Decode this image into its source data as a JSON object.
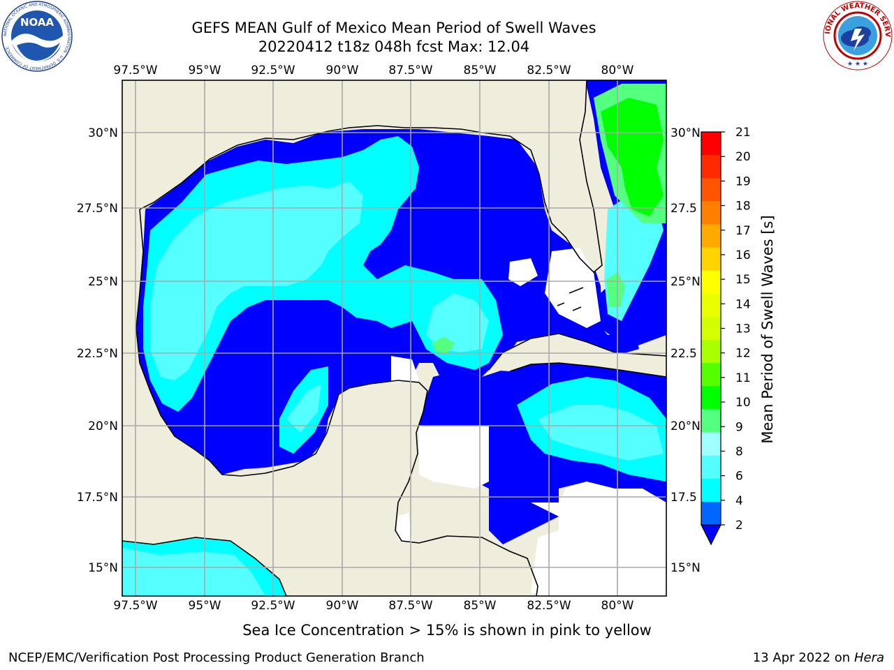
{
  "header": {
    "title_line1": "GEFS MEAN Gulf of Mexico Mean Period of Swell Waves",
    "title_line2": "20220412 t18z 048h fcst   Max: 12.04"
  },
  "logos": {
    "left": {
      "name": "noaa-logo",
      "text": "NOAA",
      "ring_text": "NATIONAL OCEANIC AND ATMOSPHERIC ADMINISTRATION · U.S. DEPARTMENT OF COMMERCE"
    },
    "right": {
      "name": "nws-logo",
      "ring_text": "NATIONAL WEATHER SERVICE"
    }
  },
  "map": {
    "lon_labels": [
      "97.5°W",
      "95°W",
      "92.5°W",
      "90°W",
      "87.5°W",
      "85°W",
      "82.5°W",
      "80°W"
    ],
    "lat_labels": [
      "30°N",
      "27.5°N",
      "25°N",
      "22.5°N",
      "20°N",
      "17.5°N",
      "15°N"
    ],
    "lat_labels_right": [
      "30°N",
      "27.5",
      "25°N",
      "22.5",
      "20°N",
      "17.5",
      "15°N"
    ],
    "land_color": "#efeedd",
    "ocean_missing_color": "#ffffff"
  },
  "colorbar": {
    "label": "Mean Period of Swell Waves [s]",
    "ticks": [
      "21",
      "20",
      "19",
      "18",
      "17",
      "16",
      "15",
      "14",
      "13",
      "12",
      "11",
      "10",
      "9",
      "8",
      "6",
      "4",
      "2"
    ],
    "colors": [
      "#ff0000",
      "#ff2a00",
      "#ff5500",
      "#ff7f00",
      "#ffaa00",
      "#ffd400",
      "#ffff00",
      "#eaff00",
      "#d4ff00",
      "#aaff00",
      "#55ff00",
      "#00ff00",
      "#55ff80",
      "#a0ffff",
      "#55ffff",
      "#00ffff",
      "#0066ff",
      "#0000ff"
    ]
  },
  "subtitle": "Sea Ice Concentration > 15% is shown in pink to yellow",
  "footer": {
    "left": "NCEP/EMC/Verification Post Processing Product Generation Branch",
    "right_date": "13 Apr 2022 on ",
    "right_host": "Hera"
  }
}
